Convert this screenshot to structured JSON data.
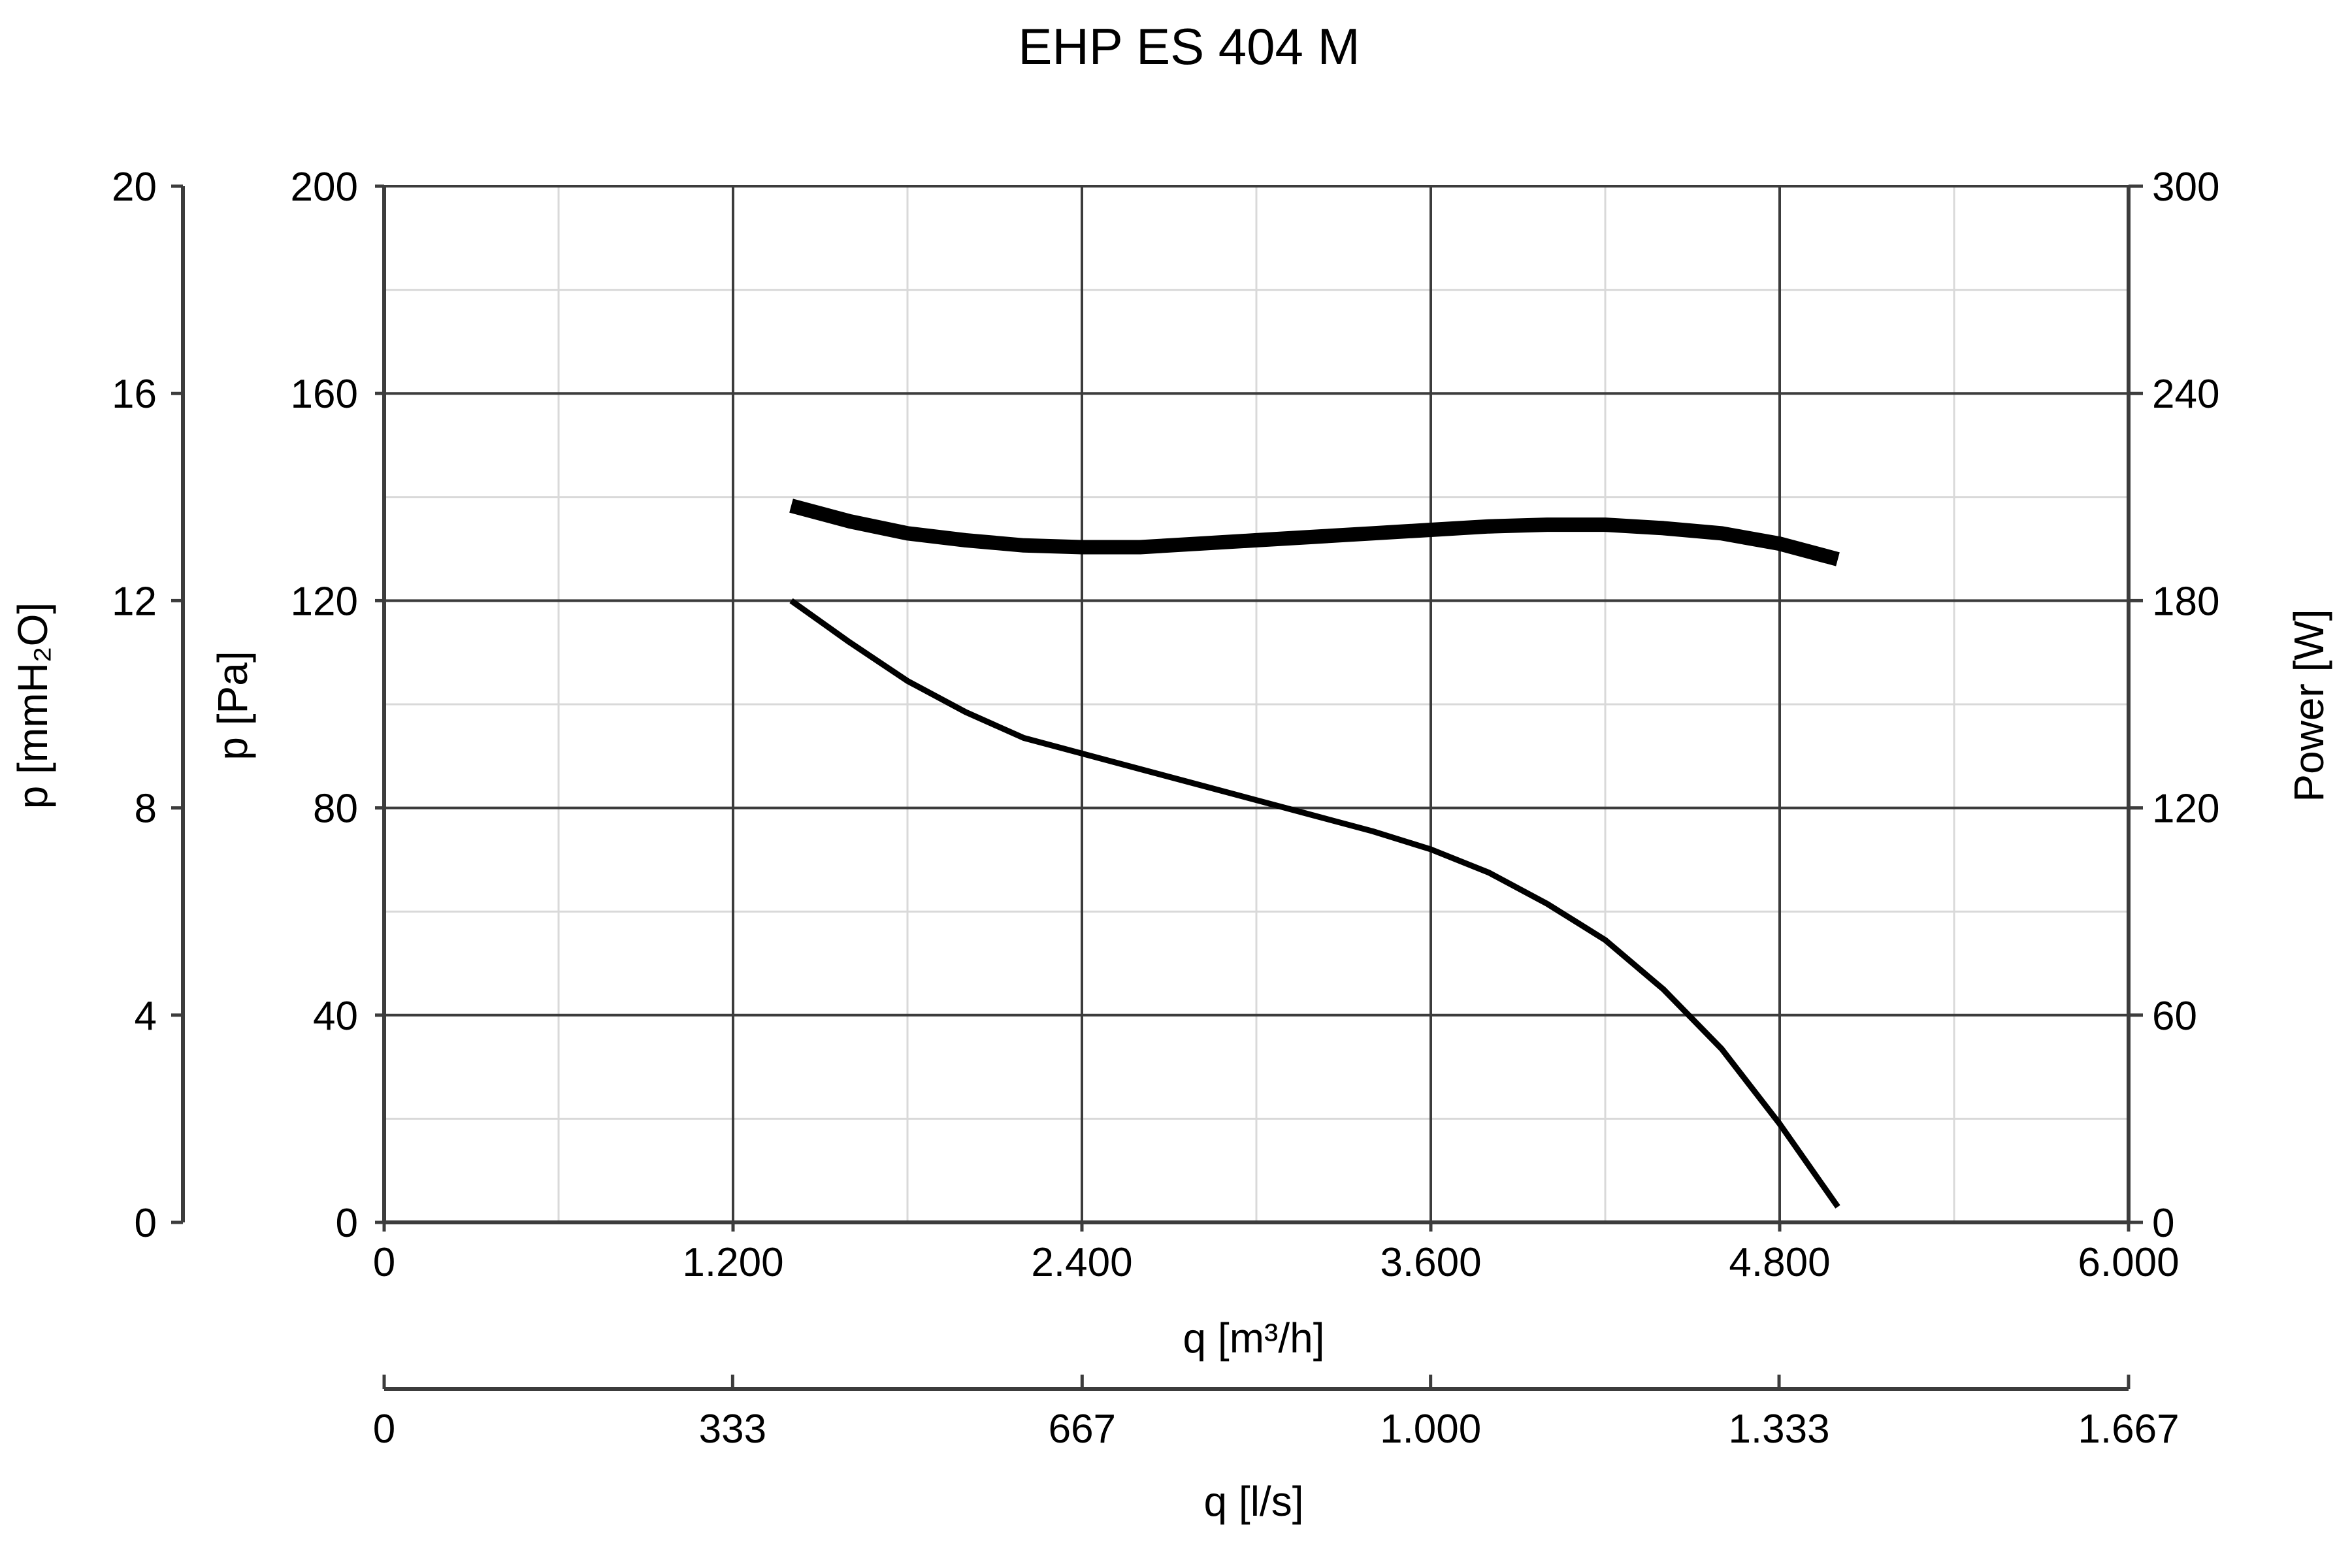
{
  "chart_data": {
    "type": "line",
    "title": "EHP ES 404 M",
    "x_axis": {
      "label": "q [m³/h]",
      "range": [
        0,
        6000
      ],
      "ticks": [
        0,
        1200,
        2400,
        3600,
        4800,
        6000
      ],
      "tick_labels": [
        "0",
        "1.200",
        "2.400",
        "3.600",
        "4.800",
        "6.000"
      ]
    },
    "x2_axis": {
      "label": "q [l/s]",
      "range": [
        0,
        1667
      ],
      "ticks": [
        0,
        333,
        667,
        1000,
        1333,
        1667
      ],
      "tick_labels": [
        "0",
        "333",
        "667",
        "1.000",
        "1.333",
        "1.667"
      ]
    },
    "y_axis": {
      "label": "p [Pa]",
      "range": [
        0,
        200
      ],
      "ticks": [
        0,
        40,
        80,
        120,
        160,
        200
      ],
      "tick_labels": [
        "0",
        "40",
        "80",
        "120",
        "160",
        "200"
      ]
    },
    "y_axis_mmh2o": {
      "label": "p [mmH₂O]",
      "range": [
        0,
        20
      ],
      "ticks": [
        0,
        4,
        8,
        12,
        16,
        20
      ],
      "tick_labels": [
        "0",
        "4",
        "8",
        "12",
        "16",
        "20"
      ]
    },
    "y2_axis": {
      "label": "Power [W]",
      "range": [
        0,
        300
      ],
      "ticks": [
        0,
        60,
        120,
        180,
        240,
        300
      ],
      "tick_labels": [
        "0",
        "60",
        "120",
        "180",
        "240",
        "300"
      ]
    },
    "grid": true,
    "series": [
      {
        "axis": "y",
        "x": [
          1400,
          1600,
          1800,
          2000,
          2200,
          2400,
          2600,
          2800,
          3000,
          3200,
          3400,
          3600,
          3800,
          4000,
          4200,
          4400,
          4600,
          4800,
          5000
        ],
        "y": [
          120,
          112,
          104.5,
          98.5,
          93.5,
          90.5,
          87.5,
          84.5,
          81.5,
          78.5,
          75.5,
          72,
          67.5,
          61.5,
          54.5,
          45,
          33.5,
          19,
          3
        ]
      },
      {
        "axis": "y2",
        "x": [
          1400,
          1600,
          1800,
          2000,
          2200,
          2400,
          2600,
          2800,
          3000,
          3200,
          3400,
          3600,
          3800,
          4000,
          4200,
          4400,
          4600,
          4800,
          5000
        ],
        "y": [
          207.5,
          203,
          199.5,
          197.5,
          196,
          195.5,
          195.5,
          196.5,
          197.5,
          198.5,
          199.5,
          200.5,
          201.5,
          202,
          202,
          201,
          199.5,
          196.5,
          192
        ]
      }
    ]
  }
}
